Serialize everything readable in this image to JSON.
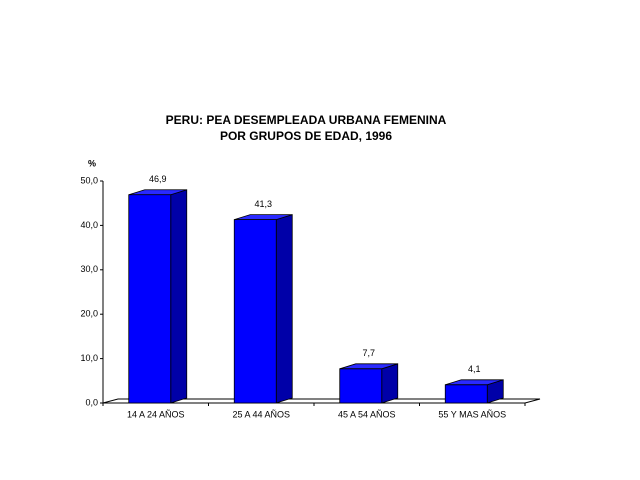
{
  "chart_data": {
    "type": "bar3d",
    "title": "PERU: PEA DESEMPLEADA URBANA FEMENINA",
    "subtitle": "POR GRUPOS DE EDAD, 1996",
    "y_label": "%",
    "categories": [
      "14 A 24 AÑOS",
      "25 A 44 AÑOS",
      "45 A 54 AÑOS",
      "55 Y MAS AÑOS"
    ],
    "values": [
      46.9,
      41.3,
      7.7,
      4.1
    ],
    "value_labels": [
      "46,9",
      "41,3",
      "7,7",
      "4,1"
    ],
    "color": "#0000ff",
    "ylim": [
      0,
      50
    ],
    "yticks": [
      {
        "value": 0,
        "label": "0,0"
      },
      {
        "value": 10,
        "label": "10,0"
      },
      {
        "value": 20,
        "label": "20,0"
      },
      {
        "value": 30,
        "label": "30,0"
      },
      {
        "value": 40,
        "label": "40,0"
      },
      {
        "value": 50,
        "label": "50,0"
      }
    ],
    "grid": false
  }
}
